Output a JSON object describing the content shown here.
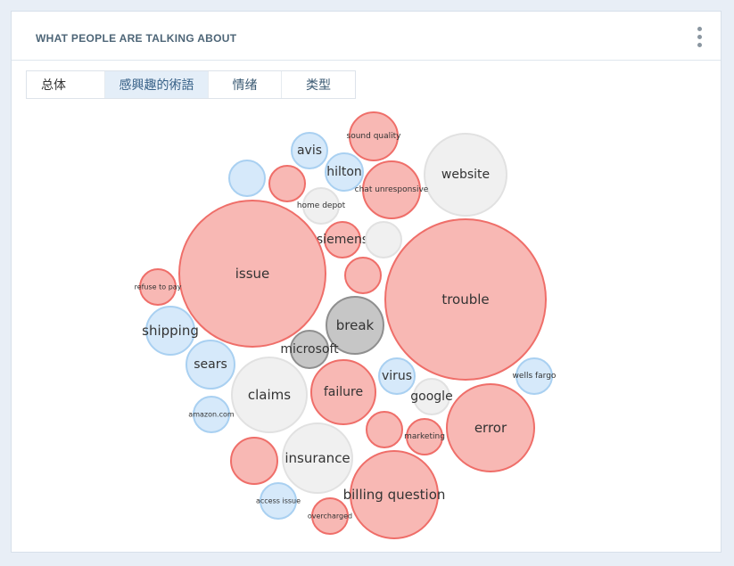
{
  "panel": {
    "title": "WHAT PEOPLE ARE TALKING ABOUT",
    "menu_icon": "kebab-menu-icon"
  },
  "tabs": [
    {
      "label": "总体",
      "active": false
    },
    {
      "label": "感興趣的術語",
      "active": true
    },
    {
      "label": "情绪",
      "active": false
    },
    {
      "label": "类型",
      "active": false
    }
  ],
  "colors": {
    "negative_fill": "#f8b8b4",
    "negative_stroke": "#ef6e69",
    "positive_fill": "#d6e9fa",
    "positive_stroke": "#a9d0f1",
    "neutral_fill": "#f0f0f0",
    "neutral_stroke": "#e1e1e1",
    "mixed_fill": "#c6c6c6",
    "mixed_stroke": "#8f8f8f"
  },
  "bubbles": [
    {
      "label": "sound quality",
      "sentiment": "negative"
    },
    {
      "label": "avis",
      "sentiment": "positive"
    },
    {
      "label": "hilton",
      "sentiment": "positive"
    },
    {
      "label": "website",
      "sentiment": "neutral"
    },
    {
      "label": "chat unresponsive",
      "sentiment": "negative"
    },
    {
      "label": "",
      "sentiment": "positive"
    },
    {
      "label": "",
      "sentiment": "negative"
    },
    {
      "label": "home depot",
      "sentiment": "neutral"
    },
    {
      "label": "siemens",
      "sentiment": "negative"
    },
    {
      "label": "",
      "sentiment": "neutral"
    },
    {
      "label": "issue",
      "sentiment": "negative"
    },
    {
      "label": "",
      "sentiment": "negative"
    },
    {
      "label": "refuse to pay",
      "sentiment": "negative"
    },
    {
      "label": "trouble",
      "sentiment": "negative"
    },
    {
      "label": "break",
      "sentiment": "mixed"
    },
    {
      "label": "shipping",
      "sentiment": "positive"
    },
    {
      "label": "microsoft",
      "sentiment": "mixed"
    },
    {
      "label": "sears",
      "sentiment": "positive"
    },
    {
      "label": "wells fargo",
      "sentiment": "positive"
    },
    {
      "label": "virus",
      "sentiment": "positive"
    },
    {
      "label": "claims",
      "sentiment": "neutral"
    },
    {
      "label": "failure",
      "sentiment": "negative"
    },
    {
      "label": "google",
      "sentiment": "neutral"
    },
    {
      "label": "amazon.com",
      "sentiment": "positive"
    },
    {
      "label": "error",
      "sentiment": "negative"
    },
    {
      "label": "",
      "sentiment": "negative"
    },
    {
      "label": "marketing",
      "sentiment": "negative"
    },
    {
      "label": "insurance",
      "sentiment": "neutral"
    },
    {
      "label": "",
      "sentiment": "negative"
    },
    {
      "label": "billing question",
      "sentiment": "negative"
    },
    {
      "label": "access issue",
      "sentiment": "positive"
    },
    {
      "label": "overcharged",
      "sentiment": "negative"
    }
  ]
}
